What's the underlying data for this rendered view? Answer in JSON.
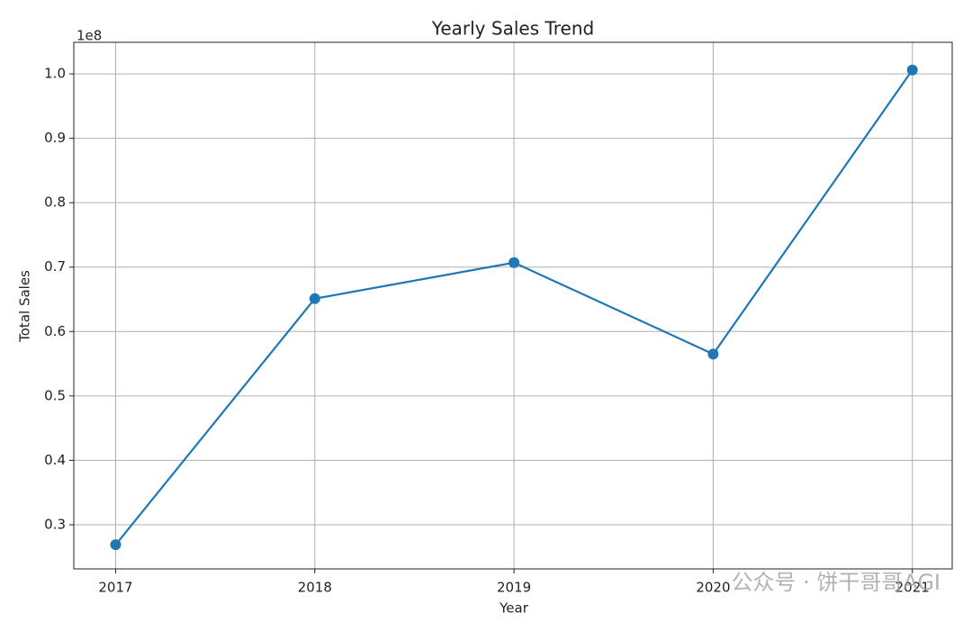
{
  "chart_data": {
    "type": "line",
    "title": "Yearly Sales Trend",
    "x_label": "Year",
    "y_label": "Total Sales",
    "y_offset_label": "1e8",
    "x": [
      2017,
      2018,
      2019,
      2020,
      2021
    ],
    "series": [
      {
        "name": "Total Sales",
        "color": "#1f77b4",
        "values": [
          0.269,
          0.651,
          0.707,
          0.565,
          1.006
        ]
      }
    ],
    "xlim": [
      2016.79,
      2021.2
    ],
    "xticks": [
      2017,
      2018,
      2019,
      2020,
      2021
    ],
    "ylim": [
      0.2315,
      1.049
    ],
    "yticks": [
      0.3,
      0.4,
      0.5,
      0.6,
      0.7,
      0.8,
      0.9,
      {
        "value": 1,
        "label": "1.0"
      }
    ],
    "grid": true,
    "markers": true
  },
  "watermark": "公众号 · 饼干哥哥AGI"
}
